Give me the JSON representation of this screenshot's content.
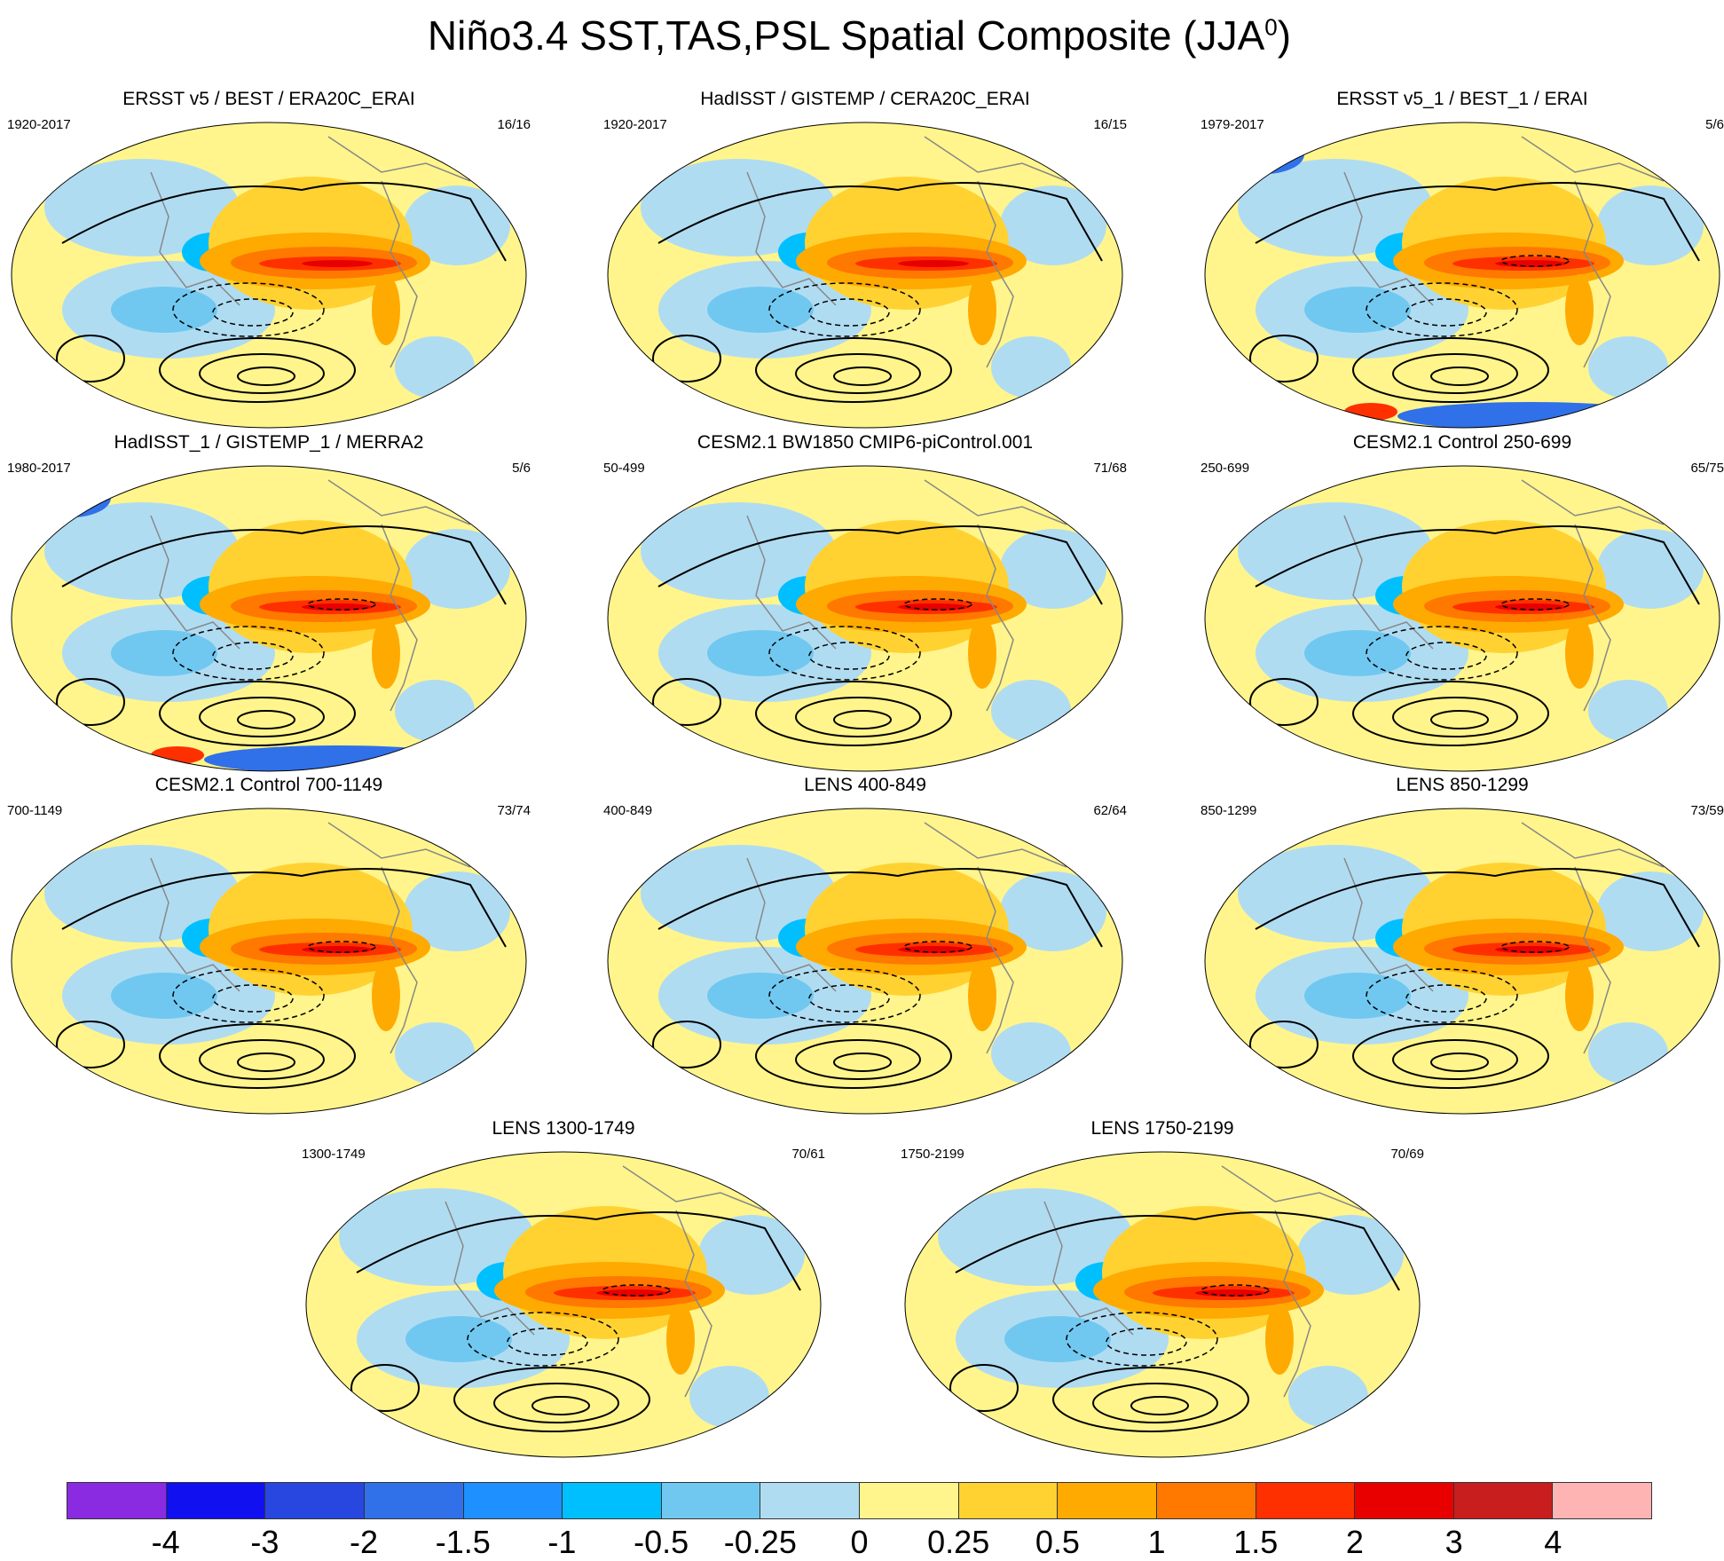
{
  "figure": {
    "title_main": "Niño3.4 SST,TAS,PSL Spatial Composite (JJA",
    "title_sup": "0",
    "title_close": ")"
  },
  "panels": [
    {
      "title": "ERSST v5 / BEST / ERA20C_ERAI",
      "years": "1920-2017",
      "count": "16/16"
    },
    {
      "title": "HadISST / GISTEMP / CERA20C_ERAI",
      "years": "1920-2017",
      "count": "16/15"
    },
    {
      "title": "ERSST v5_1 / BEST_1 / ERAI",
      "years": "1979-2017",
      "count": "5/6"
    },
    {
      "title": "HadISST_1 / GISTEMP_1 / MERRA2",
      "years": "1980-2017",
      "count": "5/6"
    },
    {
      "title": "CESM2.1 BW1850 CMIP6-piControl.001",
      "years": "50-499",
      "count": "71/68"
    },
    {
      "title": "CESM2.1 Control 250-699",
      "years": "250-699",
      "count": "65/75"
    },
    {
      "title": "CESM2.1 Control 700-1149",
      "years": "700-1149",
      "count": "73/74"
    },
    {
      "title": "LENS 400-849",
      "years": "400-849",
      "count": "62/64"
    },
    {
      "title": "LENS 850-1299",
      "years": "850-1299",
      "count": "73/59"
    },
    {
      "title": "LENS 1300-1749",
      "years": "1300-1749",
      "count": "70/61"
    },
    {
      "title": "LENS 1750-2199",
      "years": "1750-2199",
      "count": "70/69"
    }
  ],
  "colorbar": {
    "colors": [
      "#8a2be2",
      "#1010f0",
      "#2846e0",
      "#3070e8",
      "#1e90ff",
      "#00bfff",
      "#70c8f0",
      "#b0dcf2",
      "#fff58c",
      "#ffd232",
      "#ffaa00",
      "#ff7800",
      "#ff3000",
      "#e80000",
      "#c81e1e",
      "#ffb4b4"
    ],
    "labels": [
      "-4",
      "-3",
      "-2",
      "-1.5",
      "-1",
      "-0.5",
      "-0.25",
      "0",
      "0.25",
      "0.5",
      "1",
      "1.5",
      "2",
      "3",
      "4"
    ]
  }
}
